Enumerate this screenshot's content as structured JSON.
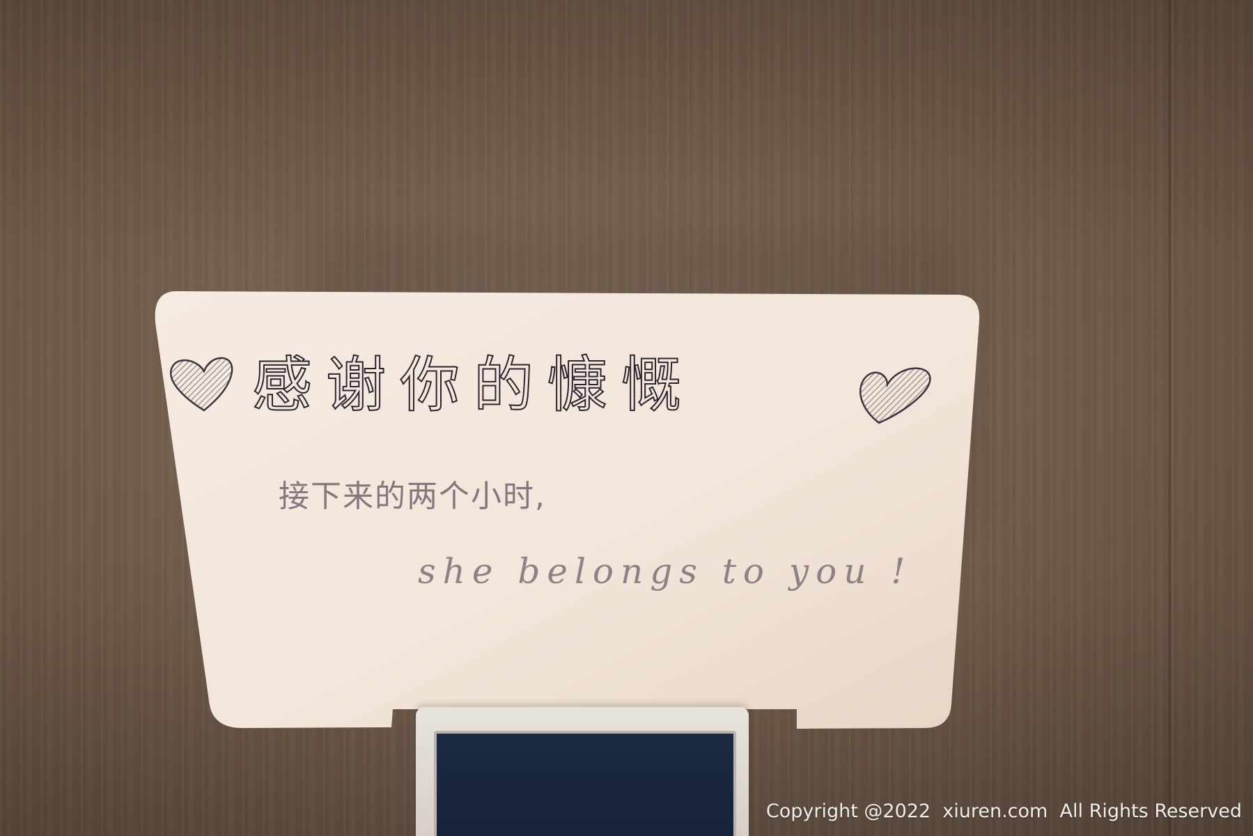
{
  "note": {
    "line1": "感谢你的慷慨",
    "line2": "接下来的两个小时,",
    "line3": "she belongs to you !"
  },
  "watermark": {
    "text": "Copyright @2022  xiuren.com  All Rights Reserved"
  },
  "colors": {
    "paper": "#f3e7dc",
    "ink_dark": "#2b2430",
    "ink_light": "#6e6470",
    "wall": "#76604f"
  },
  "icons": [
    "heart-left-icon",
    "heart-right-icon"
  ]
}
